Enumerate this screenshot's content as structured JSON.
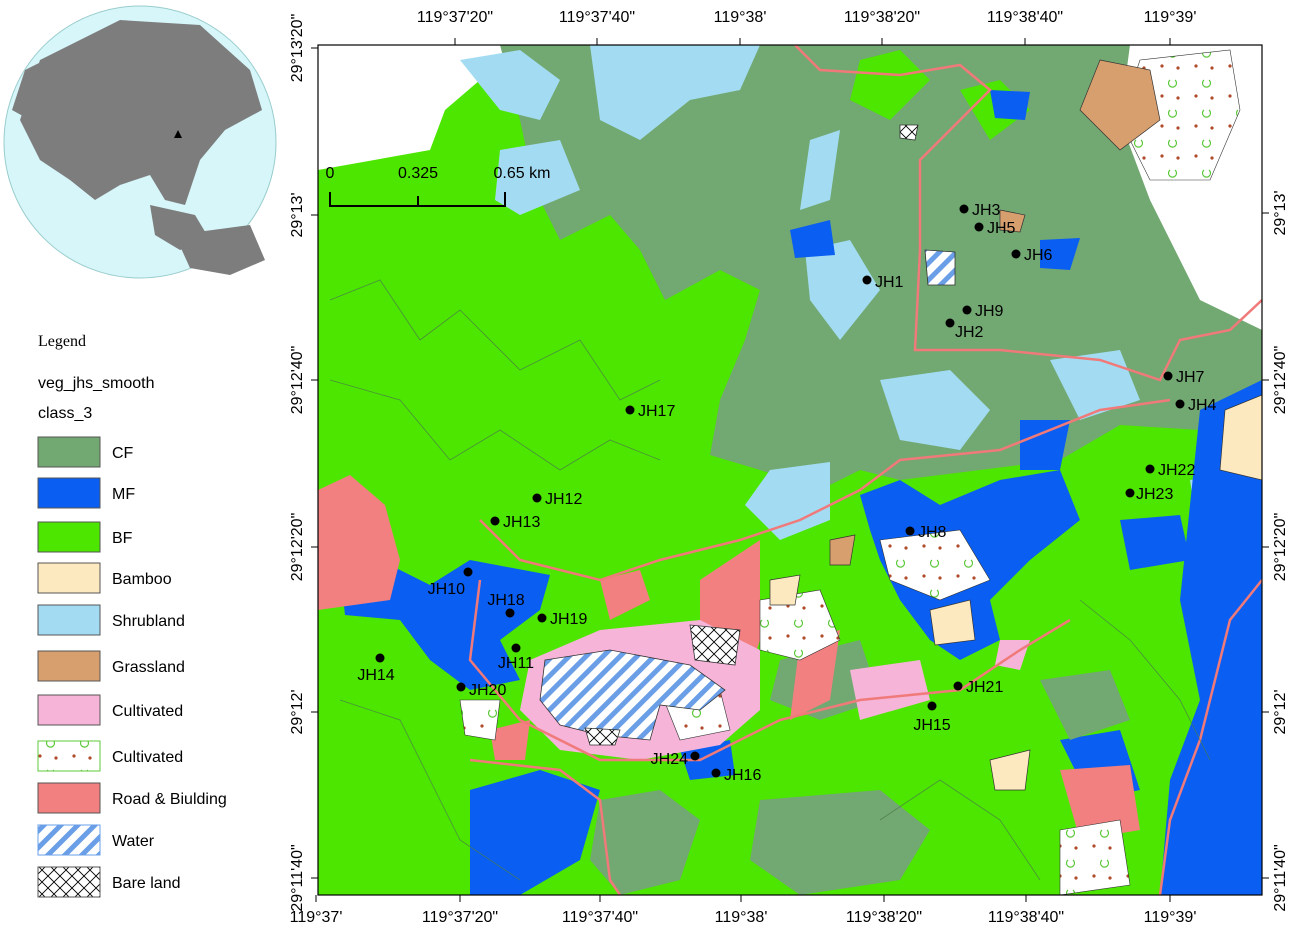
{
  "map": {
    "axes": {
      "top": [
        "119°37'20\"",
        "119°37'40\"",
        "119°38'",
        "119°38'20\"",
        "119°38'40\"",
        "119°39'"
      ],
      "bottom": [
        "119°37'",
        "119°37'20\"",
        "119°37'40\"",
        "119°38'",
        "119°38'20\"",
        "119°38'40\"",
        "119°39'"
      ],
      "left": [
        "29°13'20\"",
        "29°13'",
        "29°12'40\"",
        "29°12'20\"",
        "29°12'",
        "29°11'40\""
      ],
      "right": [
        "29°13'",
        "29°12'40\"",
        "29°12'20\"",
        "29°12'",
        "29°11'40\""
      ]
    },
    "scale_bar": [
      "0",
      "0.325",
      "0.65 km"
    ],
    "legend": {
      "title": "Legend",
      "layer": "veg_jhs_smooth",
      "field": "class_3",
      "items": [
        {
          "label": "CF",
          "color": "#72a872"
        },
        {
          "label": "MF",
          "color": "#0a5ef2"
        },
        {
          "label": "BF",
          "color": "#4ce600"
        },
        {
          "label": "Bamboo",
          "color": "#fde9c0"
        },
        {
          "label": "Shrubland",
          "color": "#a3dcf2"
        },
        {
          "label": "Grassland",
          "color": "#d79e6e"
        },
        {
          "label": "Cultivated",
          "color": "#f5b4d8"
        },
        {
          "label": "Cultivated",
          "color": "#ffffff",
          "pattern": "dots"
        },
        {
          "label": "Road & Biulding",
          "color": "#f38080"
        },
        {
          "label": "Water",
          "color": "#ffffff",
          "pattern": "hatch"
        },
        {
          "label": "Bare land",
          "color": "#ffffff",
          "pattern": "cross"
        }
      ]
    },
    "sites": [
      "JH1",
      "JH2",
      "JH3",
      "JH4",
      "JH5",
      "JH6",
      "JH7",
      "JH8",
      "JH9",
      "JH10",
      "JH11",
      "JH12",
      "JH13",
      "JH14",
      "JH15",
      "JH16",
      "JH17",
      "JH18",
      "JH19",
      "JH20",
      "JH21",
      "JH22",
      "JH23",
      "JH24"
    ]
  }
}
